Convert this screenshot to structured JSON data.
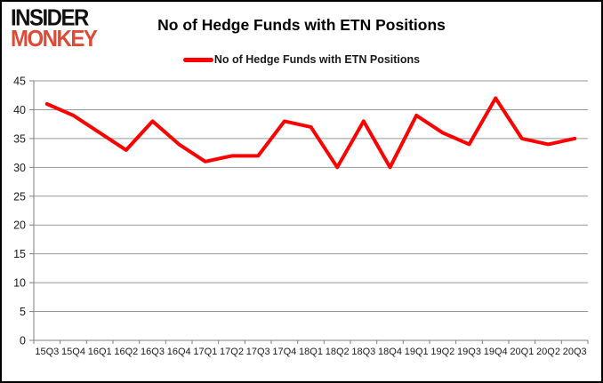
{
  "logo": {
    "line1": "INSIDER",
    "line2": "MONKEY"
  },
  "header": {
    "title": "No of Hedge Funds with ETN Positions"
  },
  "legend": {
    "label": "No of Hedge Funds with ETN Positions"
  },
  "chart_data": {
    "type": "line",
    "title": "No of Hedge Funds with ETN Positions",
    "categories": [
      "15Q3",
      "15Q4",
      "16Q1",
      "16Q2",
      "16Q3",
      "16Q4",
      "17Q1",
      "17Q2",
      "17Q3",
      "17Q4",
      "18Q1",
      "18Q2",
      "18Q3",
      "18Q4",
      "19Q1",
      "19Q2",
      "19Q3",
      "19Q4",
      "20Q1",
      "20Q2",
      "20Q3"
    ],
    "series": [
      {
        "name": "No of Hedge Funds with ETN Positions",
        "color": "#ff0000",
        "values": [
          41,
          39,
          36,
          33,
          38,
          34,
          31,
          32,
          32,
          38,
          37,
          30,
          38,
          30,
          39,
          36,
          34,
          42,
          35,
          34,
          35
        ]
      }
    ],
    "xlabel": "",
    "ylabel": "",
    "ylim": [
      0,
      45
    ],
    "ytick_step": 5,
    "grid": true,
    "legend_position": "top"
  },
  "colors": {
    "line": "#ff0000",
    "grid": "#999999",
    "axis": "#808080",
    "axis_text": "#1a1a1a",
    "logo_black": "#111111",
    "logo_red": "#dd4b38",
    "frame_border": "#000000",
    "frame_shadow": "#ff0000"
  }
}
